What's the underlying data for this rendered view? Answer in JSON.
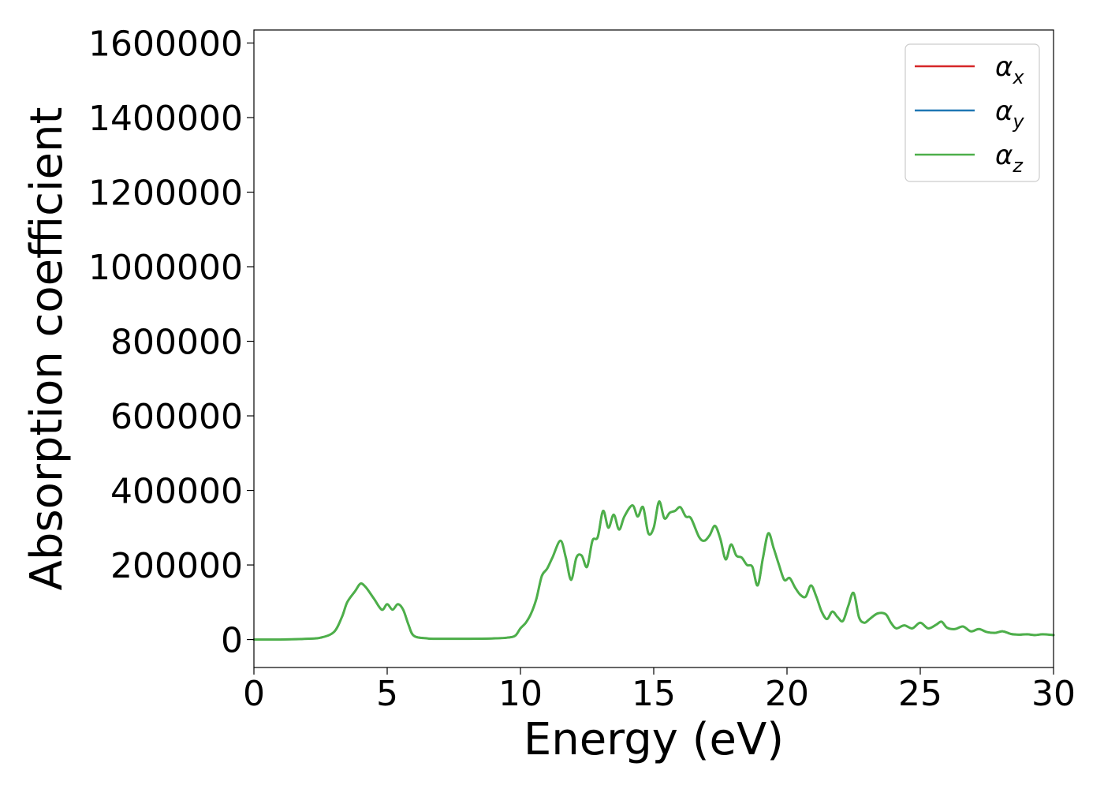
{
  "chart_data": {
    "type": "line",
    "xlabel": "Energy (eV)",
    "ylabel": "Absorption coefficient",
    "xlim": [
      0,
      30
    ],
    "ylim": [
      -75000,
      1635000
    ],
    "xticks": [
      0,
      5,
      10,
      15,
      20,
      25,
      30
    ],
    "yticks": [
      0,
      200000,
      400000,
      600000,
      800000,
      1000000,
      1200000,
      1400000,
      1600000
    ],
    "grid": false,
    "legend_position": "top-right",
    "series": [
      {
        "name": "α_x",
        "legend_base": "α",
        "legend_sub": "x",
        "color": "#d62728"
      },
      {
        "name": "α_y",
        "legend_base": "α",
        "legend_sub": "y",
        "color": "#1f77b4"
      },
      {
        "name": "α_z",
        "legend_base": "α",
        "legend_sub": "z",
        "color": "#4daf4a"
      }
    ],
    "x": [
      0,
      1,
      2,
      2.5,
      3,
      3.3,
      3.5,
      3.8,
      4.0,
      4.2,
      4.5,
      4.8,
      5.0,
      5.2,
      5.4,
      5.6,
      5.8,
      6.0,
      6.5,
      7,
      8,
      9,
      9.5,
      9.8,
      10.0,
      10.2,
      10.4,
      10.6,
      10.8,
      11.0,
      11.2,
      11.5,
      11.7,
      11.9,
      12.1,
      12.3,
      12.5,
      12.7,
      12.9,
      13.1,
      13.3,
      13.5,
      13.7,
      13.9,
      14.2,
      14.4,
      14.6,
      14.8,
      15.0,
      15.2,
      15.4,
      15.6,
      15.8,
      16.0,
      16.2,
      16.4,
      16.7,
      16.9,
      17.1,
      17.3,
      17.5,
      17.7,
      17.9,
      18.1,
      18.3,
      18.5,
      18.7,
      18.9,
      19.1,
      19.3,
      19.5,
      19.7,
      19.9,
      20.1,
      20.3,
      20.5,
      20.7,
      20.9,
      21.1,
      21.3,
      21.5,
      21.7,
      21.9,
      22.1,
      22.3,
      22.5,
      22.7,
      22.9,
      23.1,
      23.4,
      23.7,
      23.9,
      24.1,
      24.4,
      24.7,
      25.0,
      25.3,
      25.6,
      25.8,
      26.0,
      26.3,
      26.6,
      26.9,
      27.2,
      27.5,
      27.8,
      28.1,
      28.4,
      28.7,
      29.0,
      29.3,
      29.6,
      30.0
    ],
    "y": [
      0,
      0,
      2000,
      5000,
      20000,
      60000,
      100000,
      130000,
      150000,
      140000,
      110000,
      80000,
      95000,
      80000,
      95000,
      80000,
      40000,
      10000,
      3000,
      2000,
      2000,
      3000,
      5000,
      10000,
      30000,
      45000,
      70000,
      110000,
      170000,
      190000,
      220000,
      265000,
      220000,
      160000,
      220000,
      225000,
      195000,
      265000,
      275000,
      345000,
      300000,
      335000,
      295000,
      330000,
      360000,
      330000,
      355000,
      285000,
      300000,
      370000,
      325000,
      340000,
      345000,
      355000,
      330000,
      325000,
      275000,
      265000,
      280000,
      305000,
      270000,
      215000,
      255000,
      225000,
      220000,
      200000,
      195000,
      145000,
      220000,
      285000,
      245000,
      200000,
      160000,
      165000,
      140000,
      120000,
      115000,
      145000,
      115000,
      75000,
      55000,
      75000,
      60000,
      50000,
      90000,
      125000,
      60000,
      45000,
      55000,
      70000,
      68000,
      45000,
      30000,
      38000,
      30000,
      45000,
      30000,
      40000,
      48000,
      32000,
      28000,
      35000,
      22000,
      28000,
      20000,
      18000,
      22000,
      15000,
      13000,
      14000,
      12000,
      14000,
      12000
    ]
  }
}
